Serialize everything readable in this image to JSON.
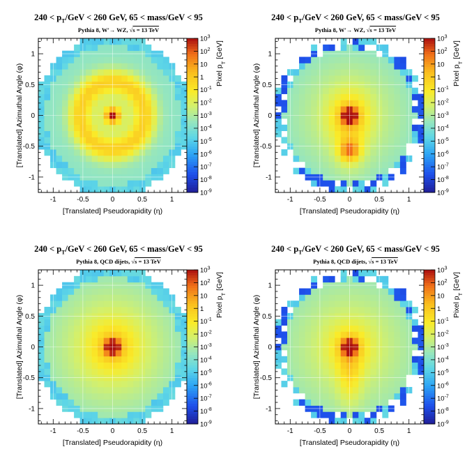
{
  "chart_data": [
    {
      "type": "heatmap",
      "title": "240 < p_T/GeV < 260 GeV, 65 < mass/GeV < 95",
      "title_parts": {
        "a": "240 < p",
        "sub": "T",
        "b": "/GeV < 260 GeV, 65 < mass/GeV < 95"
      },
      "subtitle": "Pythia 8, W'→ WZ, √s = 13 TeV",
      "subtitle_parts": {
        "a": "Pythia 8, W'→ WZ, ",
        "root": "√",
        "b": "s = 13 TeV"
      },
      "xlabel": "[Translated] Pseudorapidity (η)",
      "ylabel": "[Translated] Azimuthal Angle (φ)",
      "zlabel": "Pixel p_T [GeV]",
      "zlabel_parts": {
        "a": "Pixel p",
        "sub": "T",
        "b": " [GeV]"
      },
      "xlim": [
        -1.25,
        1.25
      ],
      "ylim": [
        -1.25,
        1.25
      ],
      "zlim_log10": [
        -9,
        3
      ],
      "z_scale": "log",
      "grid": true,
      "xticks": [
        "-1",
        "-0.5",
        "0",
        "0.5",
        "1"
      ],
      "yticks": [
        "-1",
        "-0.5",
        "0",
        "0.5",
        "1"
      ],
      "pattern": "ring",
      "sparse_edge": false
    },
    {
      "type": "heatmap",
      "title": "240 < p_T/GeV < 260 GeV, 65 < mass/GeV < 95",
      "title_parts": {
        "a": "240 < p",
        "sub": "T",
        "b": "/GeV < 260 GeV, 65 < mass/GeV < 95"
      },
      "subtitle": "Pythia 8, W'→ WZ, √s = 13 TeV",
      "subtitle_parts": {
        "a": "Pythia 8, W'→ WZ, ",
        "root": "√",
        "b": "s = 13 TeV"
      },
      "xlabel": "[Translated] Pseudorapidity (η)",
      "ylabel": "[Translated] Azimuthal Angle (φ)",
      "zlabel": "Pixel p_T [GeV]",
      "zlabel_parts": {
        "a": "Pixel p",
        "sub": "T",
        "b": " [GeV]"
      },
      "xlim": [
        -1.25,
        1.25
      ],
      "ylim": [
        -1.25,
        1.25
      ],
      "zlim_log10": [
        -9,
        3
      ],
      "z_scale": "log",
      "grid": true,
      "xticks": [
        "-1",
        "-0.5",
        "0",
        "0.5",
        "1"
      ],
      "yticks": [
        "-1",
        "-0.5",
        "0",
        "0.5",
        "1"
      ],
      "pattern": "two-prong",
      "sparse_edge": true
    },
    {
      "type": "heatmap",
      "title": "240 < p_T/GeV < 260 GeV, 65 < mass/GeV < 95",
      "title_parts": {
        "a": "240 < p",
        "sub": "T",
        "b": "/GeV < 260 GeV, 65 < mass/GeV < 95"
      },
      "subtitle": "Pythia 8, QCD dijets, √s = 13 TeV",
      "subtitle_parts": {
        "a": "Pythia 8, QCD dijets, ",
        "root": "√",
        "b": "s = 13 TeV"
      },
      "xlabel": "[Translated] Pseudorapidity (η)",
      "ylabel": "[Translated] Azimuthal Angle (φ)",
      "zlabel": "Pixel p_T [GeV]",
      "zlabel_parts": {
        "a": "Pixel p",
        "sub": "T",
        "b": " [GeV]"
      },
      "xlim": [
        -1.25,
        1.25
      ],
      "ylim": [
        -1.25,
        1.25
      ],
      "zlim_log10": [
        -9,
        3
      ],
      "z_scale": "log",
      "grid": true,
      "xticks": [
        "-1",
        "-0.5",
        "0",
        "0.5",
        "1"
      ],
      "yticks": [
        "-1",
        "-0.5",
        "0",
        "0.5",
        "1"
      ],
      "pattern": "single-core",
      "sparse_edge": false
    },
    {
      "type": "heatmap",
      "title": "240 < p_T/GeV < 260 GeV, 65 < mass/GeV < 95",
      "title_parts": {
        "a": "240 < p",
        "sub": "T",
        "b": "/GeV < 260 GeV, 65 < mass/GeV < 95"
      },
      "subtitle": "Pythia 8, QCD dijets, √s = 13 TeV",
      "subtitle_parts": {
        "a": "Pythia 8, QCD dijets, ",
        "root": "√",
        "b": "s = 13 TeV"
      },
      "xlabel": "[Translated] Pseudorapidity (η)",
      "ylabel": "[Translated] Azimuthal Angle (φ)",
      "zlabel": "Pixel p_T [GeV]",
      "zlabel_parts": {
        "a": "Pixel p",
        "sub": "T",
        "b": " [GeV]"
      },
      "xlim": [
        -1.25,
        1.25
      ],
      "ylim": [
        -1.25,
        1.25
      ],
      "zlim_log10": [
        -9,
        3
      ],
      "z_scale": "log",
      "grid": true,
      "xticks": [
        "-1",
        "-0.5",
        "0",
        "0.5",
        "1"
      ],
      "yticks": [
        "-1",
        "-0.5",
        "0",
        "0.5",
        "1"
      ],
      "pattern": "elongated",
      "sparse_edge": true
    }
  ]
}
